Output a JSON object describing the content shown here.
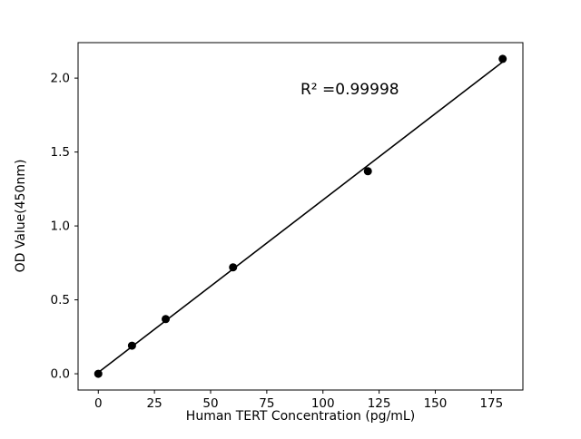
{
  "figure": {
    "background": "#ffffff"
  },
  "chart_data": {
    "type": "scatter",
    "title": "",
    "xlabel": "Human TERT Concentration (pg/mL)",
    "ylabel": "OD Value(450nm)",
    "x": [
      0,
      15,
      30,
      60,
      120,
      180
    ],
    "y": [
      0.0,
      0.19,
      0.37,
      0.72,
      1.37,
      2.13
    ],
    "fit_line": true,
    "annotation": {
      "text": "R² =0.99998",
      "x": 90,
      "y": 1.89
    },
    "xlim": [
      -9,
      189
    ],
    "ylim": [
      -0.11,
      2.24
    ],
    "xticks": [
      0,
      25,
      50,
      75,
      100,
      125,
      150,
      175
    ],
    "yticks": [
      0.0,
      0.5,
      1.0,
      1.5,
      2.0
    ],
    "grid": false,
    "legend": false,
    "marker_color": "#000000",
    "line_color": "#000000"
  }
}
